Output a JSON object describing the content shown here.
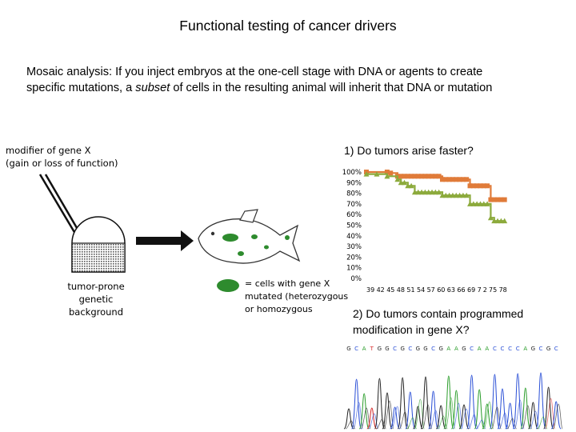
{
  "slide": {
    "title": "Functional testing of cancer drivers",
    "intro_line1": "Mosaic analysis: If you inject embryos at the one-cell stage with DNA or agents to create",
    "intro_line2_a": "specific mutations, a ",
    "intro_line2_em": "subset",
    "intro_line2_b": " of cells in the resulting animal will inherit that DNA or mutation"
  },
  "diagram": {
    "modifier_line1": "modifier of gene X",
    "modifier_line2": "(gain or loss of function)",
    "background_line1": "tumor-prone",
    "background_line2": "genetic background",
    "legend_line1": "= cells with gene X",
    "legend_line2": "mutated (heterozygous",
    "legend_line3": "or homozygous",
    "colors": {
      "cells": "#2e8b2e",
      "arrow": "#111111",
      "dish_fill": "#c8c8c8"
    }
  },
  "question1": "1) Do tumors arise faster?",
  "question2_line1": "2) Do tumors contain programmed",
  "question2_line2": "modification in gene X?",
  "chart_data": {
    "type": "line",
    "yticks": [
      "100%",
      "90%",
      "80%",
      "70%",
      "60%",
      "50%",
      "40%",
      "30%",
      "20%",
      "10%",
      "0%"
    ],
    "ylim": [
      0,
      100
    ],
    "xlim": [
      39,
      80
    ],
    "x_tick_labels": [
      "39",
      "42",
      "45",
      "48",
      "51",
      "54",
      "57",
      "60",
      "63",
      "66",
      "69",
      "7",
      "2",
      "75",
      "78"
    ],
    "series": [
      {
        "color": "#e07b39",
        "marker": "square",
        "points": [
          [
            39,
            100
          ],
          [
            45,
            100
          ],
          [
            46,
            99
          ],
          [
            48,
            96
          ],
          [
            49,
            96
          ],
          [
            50,
            96
          ],
          [
            51,
            96
          ],
          [
            52,
            96
          ],
          [
            53,
            96
          ],
          [
            54,
            96
          ],
          [
            55,
            96
          ],
          [
            56,
            96
          ],
          [
            57,
            96
          ],
          [
            58,
            96
          ],
          [
            59,
            96
          ],
          [
            60,
            96
          ],
          [
            61,
            93
          ],
          [
            62,
            93
          ],
          [
            63,
            93
          ],
          [
            64,
            93
          ],
          [
            65,
            93
          ],
          [
            66,
            93
          ],
          [
            67,
            93
          ],
          [
            68,
            93
          ],
          [
            69,
            87
          ],
          [
            70,
            87
          ],
          [
            71,
            87
          ],
          [
            72,
            87
          ],
          [
            73,
            87
          ],
          [
            74,
            87
          ],
          [
            75,
            74
          ],
          [
            76,
            74
          ],
          [
            77,
            74
          ],
          [
            78,
            74
          ],
          [
            79,
            74
          ]
        ]
      },
      {
        "color": "#8caa3c",
        "marker": "triangle",
        "points": [
          [
            39,
            98
          ],
          [
            42,
            98
          ],
          [
            45,
            96
          ],
          [
            48,
            93
          ],
          [
            49,
            90
          ],
          [
            50,
            90
          ],
          [
            51,
            87
          ],
          [
            52,
            87
          ],
          [
            53,
            81
          ],
          [
            54,
            81
          ],
          [
            55,
            81
          ],
          [
            56,
            81
          ],
          [
            57,
            81
          ],
          [
            58,
            81
          ],
          [
            59,
            81
          ],
          [
            60,
            81
          ],
          [
            61,
            78
          ],
          [
            62,
            78
          ],
          [
            63,
            78
          ],
          [
            64,
            78
          ],
          [
            65,
            78
          ],
          [
            66,
            78
          ],
          [
            67,
            78
          ],
          [
            68,
            78
          ],
          [
            69,
            70
          ],
          [
            70,
            70
          ],
          [
            71,
            70
          ],
          [
            72,
            70
          ],
          [
            73,
            70
          ],
          [
            74,
            70
          ],
          [
            75,
            57
          ],
          [
            76,
            54
          ],
          [
            77,
            54
          ],
          [
            78,
            54
          ],
          [
            79,
            54
          ]
        ]
      }
    ]
  },
  "sequence": {
    "bases": [
      "G",
      "C",
      "A",
      "T",
      "G",
      "G",
      "C",
      "G",
      "C",
      "G",
      "G",
      "C",
      "G",
      "A",
      "A",
      "G",
      "C",
      "A",
      "A",
      "C",
      "C",
      "C",
      "C",
      "A",
      "G",
      "C",
      "G",
      "C"
    ]
  }
}
